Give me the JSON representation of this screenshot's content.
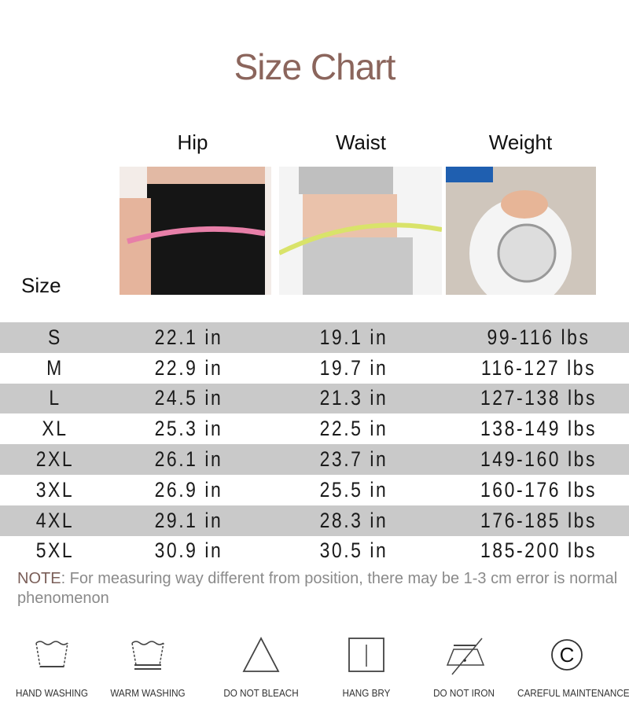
{
  "title": "Size Chart",
  "columns": {
    "size": "Size",
    "hip": "Hip",
    "waist": "Waist",
    "weight": "Weight"
  },
  "rows": [
    {
      "size": "S",
      "hip": "22.1 in",
      "waist": "19.1 in",
      "weight": "99-116 lbs"
    },
    {
      "size": "M",
      "hip": "22.9 in",
      "waist": "19.7 in",
      "weight": "116-127 lbs"
    },
    {
      "size": "L",
      "hip": "24.5 in",
      "waist": "21.3 in",
      "weight": "127-138 lbs"
    },
    {
      "size": "XL",
      "hip": "25.3 in",
      "waist": "22.5 in",
      "weight": "138-149 lbs"
    },
    {
      "size": "2XL",
      "hip": "26.1 in",
      "waist": "23.7 in",
      "weight": "149-160 lbs"
    },
    {
      "size": "3XL",
      "hip": "26.9 in",
      "waist": "25.5 in",
      "weight": "160-176 lbs"
    },
    {
      "size": "4XL",
      "hip": "29.1 in",
      "waist": "28.3 in",
      "weight": "176-185 lbs"
    },
    {
      "size": "5XL",
      "hip": "30.9 in",
      "waist": "30.5 in",
      "weight": "185-200 lbs"
    }
  ],
  "note": {
    "label": "NOTE",
    "text": ": For measuring way different from position, there may be 1-3 cm error is normal phenomenon"
  },
  "care": [
    {
      "icon": "hand-wash-icon",
      "label": "HAND WASHING"
    },
    {
      "icon": "warm-wash-icon",
      "label": "WARM WASHING"
    },
    {
      "icon": "do-not-bleach-icon",
      "label": "DO NOT BLEACH"
    },
    {
      "icon": "hang-dry-icon",
      "label": "HANG BRY"
    },
    {
      "icon": "do-not-iron-icon",
      "label": "DO NOT IRON"
    },
    {
      "icon": "careful-maintenance-icon",
      "label": "CAREFUL MAINTENANCE"
    }
  ],
  "colors": {
    "title": "#8b655c",
    "row_alt": "#c9c9c9",
    "note": "#8a8a8a"
  }
}
